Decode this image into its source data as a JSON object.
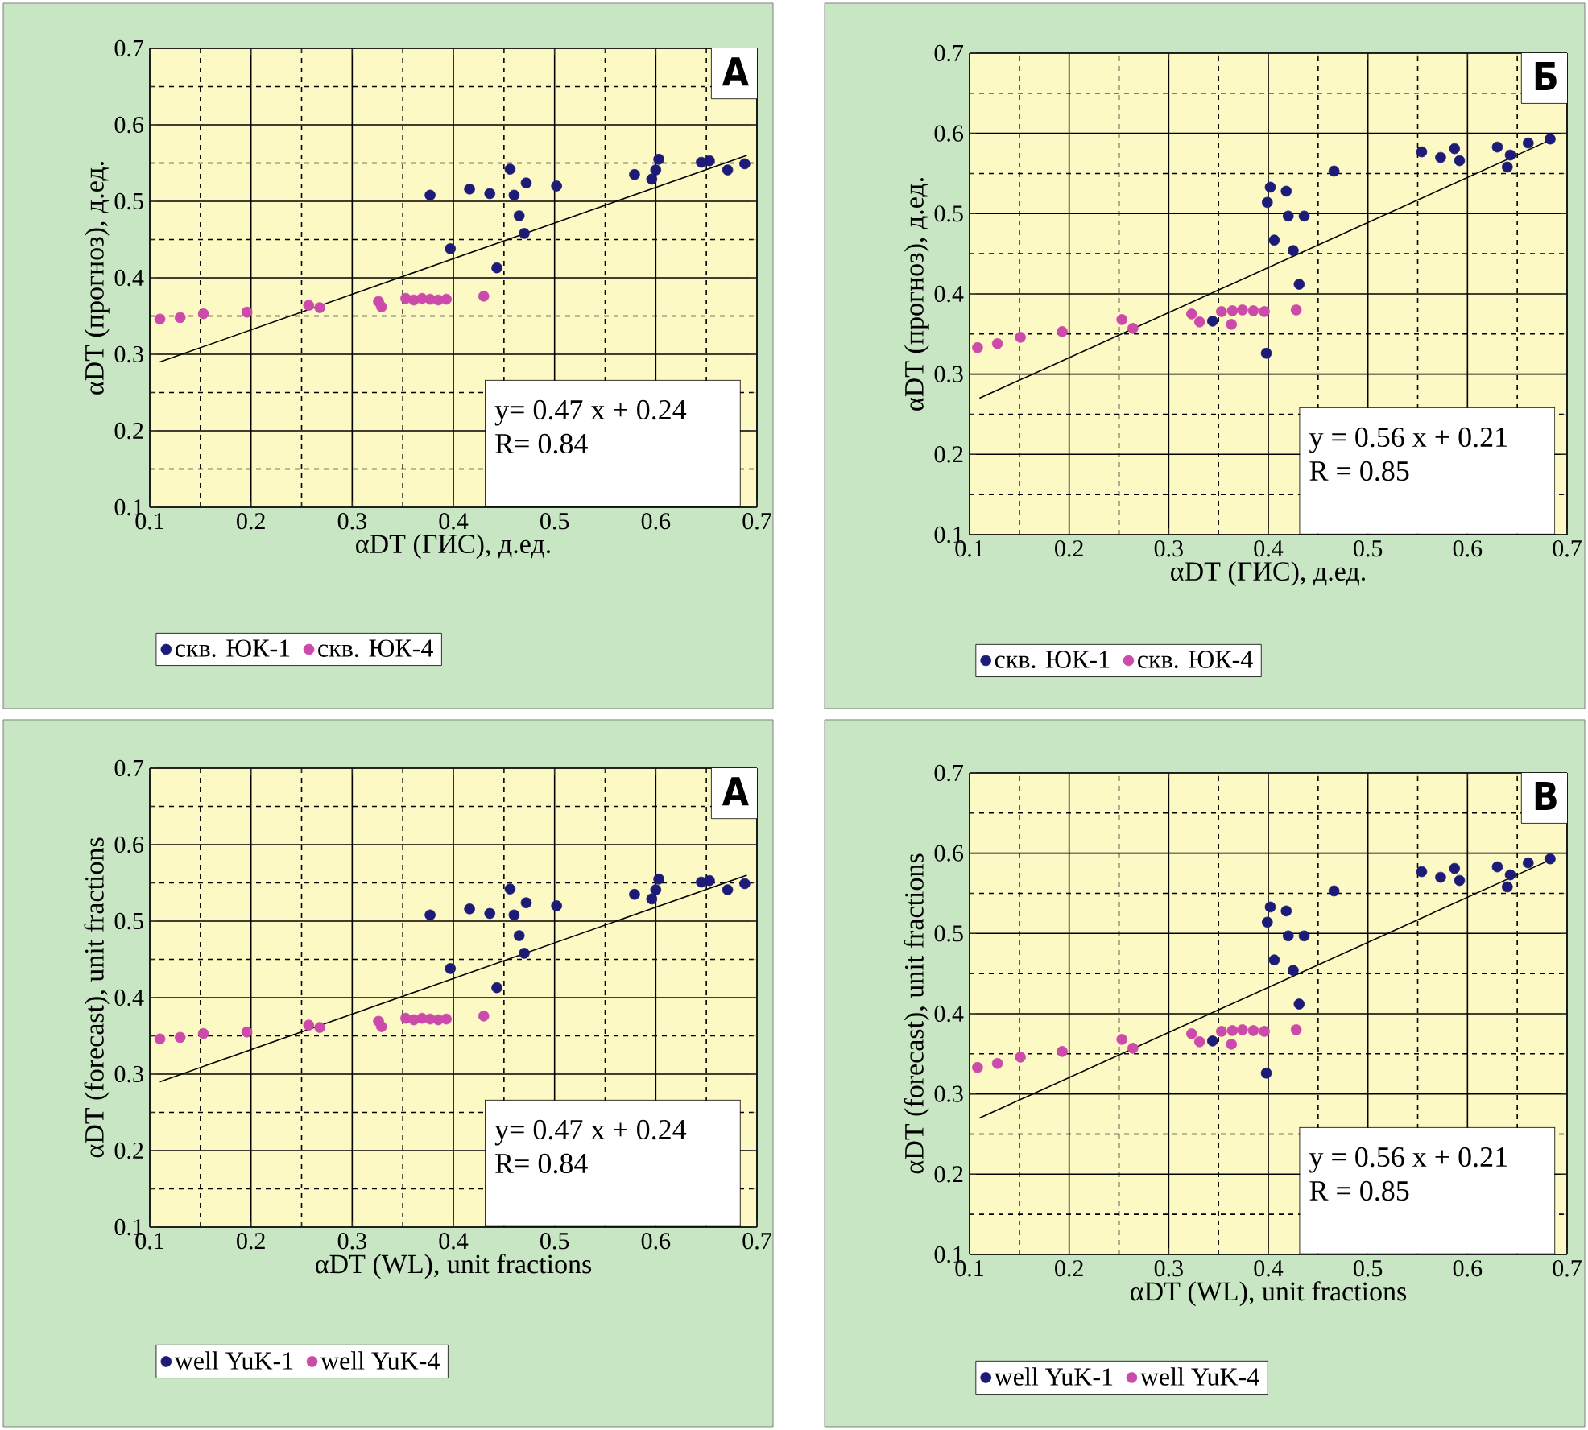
{
  "chart_data": [
    {
      "type": "scatter",
      "xlabel": "αDT (ГИС), д.ед.",
      "ylabel": "αDT (прогноз), д.ед.",
      "xlim": [
        0.1,
        0.7
      ],
      "ylim": [
        0.1,
        0.7
      ],
      "xticks": [
        0.1,
        0.2,
        0.3,
        0.4,
        0.5,
        0.6,
        0.7
      ],
      "yticks": [
        0.1,
        0.2,
        0.3,
        0.4,
        0.5,
        0.6,
        0.7
      ],
      "grid": true,
      "legend": "bottom",
      "marker": "circle",
      "annotations": [
        "A",
        "y= 0.47 x + 0.24",
        "R= 0.84"
      ],
      "series": [
        {
          "name": "скв. ЮК-1",
          "color": "#1c1c78",
          "x": [
            0.377,
            0.397,
            0.416,
            0.436,
            0.443,
            0.456,
            0.46,
            0.472,
            0.465,
            0.47,
            0.502,
            0.579,
            0.596,
            0.603,
            0.6,
            0.645,
            0.653,
            0.671,
            0.688
          ],
          "values": [
            0.508,
            0.438,
            0.516,
            0.51,
            0.413,
            0.542,
            0.508,
            0.524,
            0.481,
            0.458,
            0.52,
            0.535,
            0.529,
            0.555,
            0.541,
            0.551,
            0.553,
            0.541,
            0.549
          ]
        },
        {
          "name": "скв. ЮК-4",
          "color": "#cc4aaa",
          "x": [
            0.11,
            0.13,
            0.153,
            0.196,
            0.257,
            0.268,
            0.326,
            0.329,
            0.353,
            0.361,
            0.369,
            0.377,
            0.385,
            0.393,
            0.43
          ],
          "values": [
            0.346,
            0.348,
            0.353,
            0.355,
            0.364,
            0.361,
            0.369,
            0.362,
            0.373,
            0.371,
            0.373,
            0.372,
            0.371,
            0.372,
            0.376
          ]
        },
        {
          "type": "line",
          "marker": "none",
          "color": "#000000",
          "x": [
            0.11,
            0.69
          ],
          "values": [
            0.29,
            0.56
          ]
        }
      ]
    },
    {
      "type": "scatter",
      "xlabel": "αDT (ГИС), д.ед.",
      "ylabel": "αDT (прогноз), д.ед.",
      "xlim": [
        0.1,
        0.7
      ],
      "ylim": [
        0.1,
        0.7
      ],
      "xticks": [
        0.1,
        0.2,
        0.3,
        0.4,
        0.5,
        0.6,
        0.7
      ],
      "yticks": [
        0.1,
        0.2,
        0.3,
        0.4,
        0.5,
        0.6,
        0.7
      ],
      "grid": true,
      "legend": "bottom",
      "marker": "circle",
      "annotations": [
        "Б",
        "y = 0.56 x + 0.21",
        "R = 0.85"
      ],
      "series": [
        {
          "name": "скв. ЮК-1",
          "color": "#1c1c78",
          "x": [
            0.344,
            0.398,
            0.399,
            0.402,
            0.406,
            0.418,
            0.42,
            0.436,
            0.425,
            0.431,
            0.466,
            0.554,
            0.573,
            0.587,
            0.592,
            0.63,
            0.643,
            0.64,
            0.661,
            0.683
          ],
          "values": [
            0.366,
            0.326,
            0.514,
            0.533,
            0.467,
            0.528,
            0.497,
            0.497,
            0.454,
            0.412,
            0.553,
            0.577,
            0.57,
            0.581,
            0.566,
            0.583,
            0.573,
            0.558,
            0.588,
            0.593
          ]
        },
        {
          "name": "скв. ЮК-4",
          "color": "#cc4aaa",
          "x": [
            0.108,
            0.128,
            0.151,
            0.193,
            0.253,
            0.264,
            0.323,
            0.331,
            0.353,
            0.363,
            0.364,
            0.374,
            0.385,
            0.396,
            0.428
          ],
          "values": [
            0.333,
            0.338,
            0.346,
            0.353,
            0.368,
            0.357,
            0.375,
            0.365,
            0.378,
            0.362,
            0.379,
            0.38,
            0.379,
            0.378,
            0.38
          ]
        },
        {
          "type": "line",
          "marker": "none",
          "color": "#000000",
          "x": [
            0.11,
            0.68
          ],
          "values": [
            0.27,
            0.59
          ]
        }
      ]
    },
    {
      "type": "scatter",
      "xlabel": "αDT (WL), unit fractions",
      "ylabel": "αDT (forecast), unit fractions",
      "xlim": [
        0.1,
        0.7
      ],
      "ylim": [
        0.1,
        0.7
      ],
      "xticks": [
        0.1,
        0.2,
        0.3,
        0.4,
        0.5,
        0.6,
        0.7
      ],
      "yticks": [
        0.1,
        0.2,
        0.3,
        0.4,
        0.5,
        0.6,
        0.7
      ],
      "grid": true,
      "legend": "bottom",
      "marker": "circle",
      "annotations": [
        "A",
        "y= 0.47 x + 0.24",
        "R= 0.84"
      ],
      "series": [
        {
          "name": "well YuK-1",
          "color": "#1c1c78",
          "x": [
            0.377,
            0.397,
            0.416,
            0.436,
            0.443,
            0.456,
            0.46,
            0.472,
            0.465,
            0.47,
            0.502,
            0.579,
            0.596,
            0.603,
            0.6,
            0.645,
            0.653,
            0.671,
            0.688
          ],
          "values": [
            0.508,
            0.438,
            0.516,
            0.51,
            0.413,
            0.542,
            0.508,
            0.524,
            0.481,
            0.458,
            0.52,
            0.535,
            0.529,
            0.555,
            0.541,
            0.551,
            0.553,
            0.541,
            0.549
          ]
        },
        {
          "name": "well YuK-4",
          "color": "#cc4aaa",
          "x": [
            0.11,
            0.13,
            0.153,
            0.196,
            0.257,
            0.268,
            0.326,
            0.329,
            0.353,
            0.361,
            0.369,
            0.377,
            0.385,
            0.393,
            0.43
          ],
          "values": [
            0.346,
            0.348,
            0.353,
            0.355,
            0.364,
            0.361,
            0.369,
            0.362,
            0.373,
            0.371,
            0.373,
            0.372,
            0.371,
            0.372,
            0.376
          ]
        },
        {
          "type": "line",
          "marker": "none",
          "color": "#000000",
          "x": [
            0.11,
            0.69
          ],
          "values": [
            0.29,
            0.56
          ]
        }
      ]
    },
    {
      "type": "scatter",
      "xlabel": "αDT (WL), unit fractions",
      "ylabel": "αDT (forecast), unit fractions",
      "xlim": [
        0.1,
        0.7
      ],
      "ylim": [
        0.1,
        0.7
      ],
      "xticks": [
        0.1,
        0.2,
        0.3,
        0.4,
        0.5,
        0.6,
        0.7
      ],
      "yticks": [
        0.1,
        0.2,
        0.3,
        0.4,
        0.5,
        0.6,
        0.7
      ],
      "grid": true,
      "legend": "bottom",
      "marker": "circle",
      "annotations": [
        "B",
        "y = 0.56 x + 0.21",
        "R = 0.85"
      ],
      "series": [
        {
          "name": "well YuK-1",
          "color": "#1c1c78",
          "x": [
            0.344,
            0.398,
            0.399,
            0.402,
            0.406,
            0.418,
            0.42,
            0.436,
            0.425,
            0.431,
            0.466,
            0.554,
            0.573,
            0.587,
            0.592,
            0.63,
            0.643,
            0.64,
            0.661,
            0.683
          ],
          "values": [
            0.366,
            0.326,
            0.514,
            0.533,
            0.467,
            0.528,
            0.497,
            0.497,
            0.454,
            0.412,
            0.553,
            0.577,
            0.57,
            0.581,
            0.566,
            0.583,
            0.573,
            0.558,
            0.588,
            0.593
          ]
        },
        {
          "name": "well YuK-4",
          "color": "#cc4aaa",
          "x": [
            0.108,
            0.128,
            0.151,
            0.193,
            0.253,
            0.264,
            0.323,
            0.331,
            0.353,
            0.363,
            0.364,
            0.374,
            0.385,
            0.396,
            0.428
          ],
          "values": [
            0.333,
            0.338,
            0.346,
            0.353,
            0.368,
            0.357,
            0.375,
            0.365,
            0.378,
            0.362,
            0.379,
            0.38,
            0.379,
            0.378,
            0.38
          ]
        },
        {
          "type": "line",
          "marker": "none",
          "color": "#000000",
          "x": [
            0.11,
            0.68
          ],
          "values": [
            0.27,
            0.59
          ]
        }
      ]
    }
  ]
}
